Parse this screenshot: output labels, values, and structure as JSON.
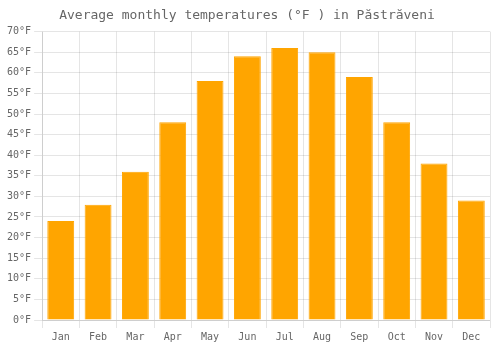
{
  "chart_data": {
    "type": "bar",
    "title": "Average monthly temperatures (°F ) in Păstrăveni",
    "categories": [
      "Jan",
      "Feb",
      "Mar",
      "Apr",
      "May",
      "Jun",
      "Jul",
      "Aug",
      "Sep",
      "Oct",
      "Nov",
      "Dec"
    ],
    "values": [
      24,
      28,
      36,
      48,
      58,
      64,
      66,
      65,
      59,
      48,
      38,
      29
    ],
    "color": "#FFA500",
    "ylim": [
      0,
      70
    ],
    "yticks": [
      {
        "value": 0,
        "label": "0°F"
      },
      {
        "value": 5,
        "label": "5°F"
      },
      {
        "value": 10,
        "label": "10°F"
      },
      {
        "value": 15,
        "label": "15°F"
      },
      {
        "value": 20,
        "label": "20°F"
      },
      {
        "value": 25,
        "label": "25°F"
      },
      {
        "value": 30,
        "label": "30°F"
      },
      {
        "value": 35,
        "label": "35°F"
      },
      {
        "value": 40,
        "label": "40°F"
      },
      {
        "value": 45,
        "label": "45°F"
      },
      {
        "value": 50,
        "label": "50°F"
      },
      {
        "value": 55,
        "label": "55°F"
      },
      {
        "value": 60,
        "label": "60°F"
      },
      {
        "value": 65,
        "label": "65°F"
      },
      {
        "value": 70,
        "label": "70°F"
      }
    ],
    "grid": true
  }
}
